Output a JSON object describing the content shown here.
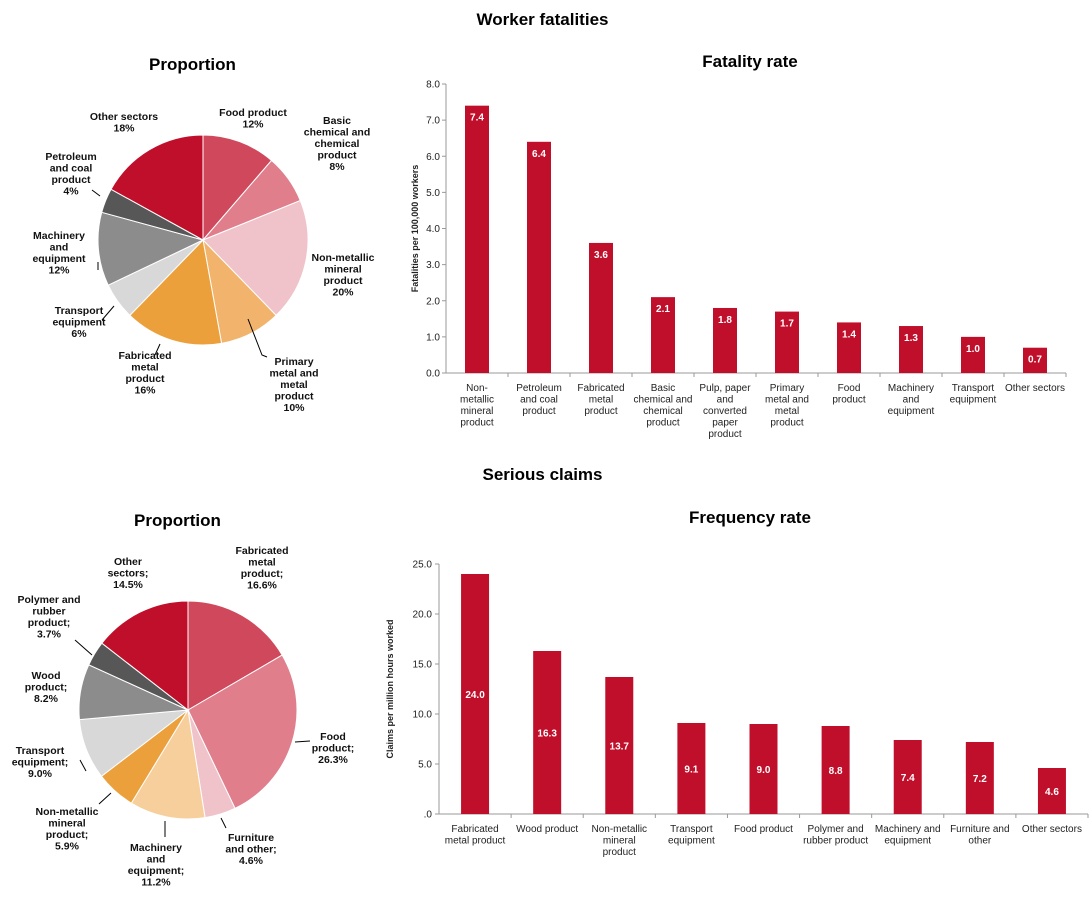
{
  "sections": [
    {
      "title": "Worker fatalities"
    },
    {
      "title": "Serious claims"
    }
  ],
  "chart_data": [
    {
      "type": "pie",
      "title": "Proportion",
      "slices": [
        {
          "label": "Food product",
          "value_text": "12%",
          "value": 12,
          "color": "#d0485c"
        },
        {
          "label": "Basic chemical and chemical product",
          "value_text": "8%",
          "value": 8,
          "color": "#e07e8c"
        },
        {
          "label": "Non-metallic mineral product",
          "value_text": "20%",
          "value": 20,
          "color": "#f0c3ca"
        },
        {
          "label": "Primary metal and metal product",
          "value_text": "10%",
          "value": 10,
          "color": "#f2b46c"
        },
        {
          "label": "Fabricated metal product",
          "value_text": "16%",
          "value": 16,
          "color": "#eba03c"
        },
        {
          "label": "Transport equipment",
          "value_text": "6%",
          "value": 6,
          "color": "#d8d8d8"
        },
        {
          "label": "Machinery and equipment",
          "value_text": "12%",
          "value": 12,
          "color": "#8c8c8c"
        },
        {
          "label": "Petroleum and coal product",
          "value_text": "4%",
          "value": 4,
          "color": "#575757"
        },
        {
          "label": "Other sectors",
          "value_text": "18%",
          "value": 18,
          "color": "#c00f2b"
        }
      ]
    },
    {
      "type": "bar",
      "title": "Fatality rate",
      "ylabel": "Fatalities per 100,000 workers",
      "ylim": [
        0,
        8
      ],
      "yticks": [
        "0.0",
        "1.0",
        "2.0",
        "3.0",
        "4.0",
        "5.0",
        "6.0",
        "7.0",
        "8.0"
      ],
      "bar_color": "#c00f2b",
      "categories": [
        "Non-metallic mineral product",
        "Petroleum and coal product",
        "Fabricated metal product",
        "Basic chemical and chemical product",
        "Pulp, paper and converted paper product",
        "Primary metal and metal product",
        "Food product",
        "Machinery and equipment",
        "Transport equipment",
        "Other sectors"
      ],
      "values": [
        7.4,
        6.4,
        3.6,
        2.1,
        1.8,
        1.7,
        1.4,
        1.3,
        1.0,
        0.7
      ],
      "value_labels": [
        "7.4",
        "6.4",
        "3.6",
        "2.1",
        "1.8",
        "1.7",
        "1.4",
        "1.3",
        "1.0",
        "0.7"
      ]
    },
    {
      "type": "pie",
      "title": "Proportion",
      "slices": [
        {
          "label": "Fabricated metal product;",
          "value_text": "16.6%",
          "value": 16.6,
          "color": "#d0485c"
        },
        {
          "label": "Food product;",
          "value_text": "26.3%",
          "value": 26.3,
          "color": "#e07e8c"
        },
        {
          "label": "Furniture and other;",
          "value_text": "4.6%",
          "value": 4.6,
          "color": "#f0c3ca"
        },
        {
          "label": "Machinery and equipment;",
          "value_text": "11.2%",
          "value": 11.2,
          "color": "#f6cf9c"
        },
        {
          "label": "Non-metallic mineral product;",
          "value_text": "5.9%",
          "value": 5.9,
          "color": "#eba03c"
        },
        {
          "label": "Transport equipment;",
          "value_text": "9.0%",
          "value": 9.0,
          "color": "#d8d8d8"
        },
        {
          "label": "Wood product;",
          "value_text": "8.2%",
          "value": 8.2,
          "color": "#8c8c8c"
        },
        {
          "label": "Polymer and rubber product;",
          "value_text": "3.7%",
          "value": 3.7,
          "color": "#575757"
        },
        {
          "label": "Other sectors;",
          "value_text": "14.5%",
          "value": 14.5,
          "color": "#c00f2b"
        }
      ]
    },
    {
      "type": "bar",
      "title": "Frequency rate",
      "ylabel": "Claims per million hours worked",
      "ylim": [
        0,
        25
      ],
      "yticks": [
        ".0",
        "5.0",
        "10.0",
        "15.0",
        "20.0",
        "25.0"
      ],
      "bar_color": "#c00f2b",
      "categories": [
        "Fabricated metal product",
        "Wood product",
        "Non-metallic mineral product",
        "Transport equipment",
        "Food product",
        "Polymer and rubber product",
        "Machinery and equipment",
        "Furniture and other",
        "Other sectors"
      ],
      "values": [
        24.0,
        16.3,
        13.7,
        9.1,
        9.0,
        8.8,
        7.4,
        7.2,
        4.6
      ],
      "value_labels": [
        "24.0",
        "16.3",
        "13.7",
        "9.1",
        "9.0",
        "8.8",
        "7.4",
        "7.2",
        "4.6"
      ]
    }
  ]
}
